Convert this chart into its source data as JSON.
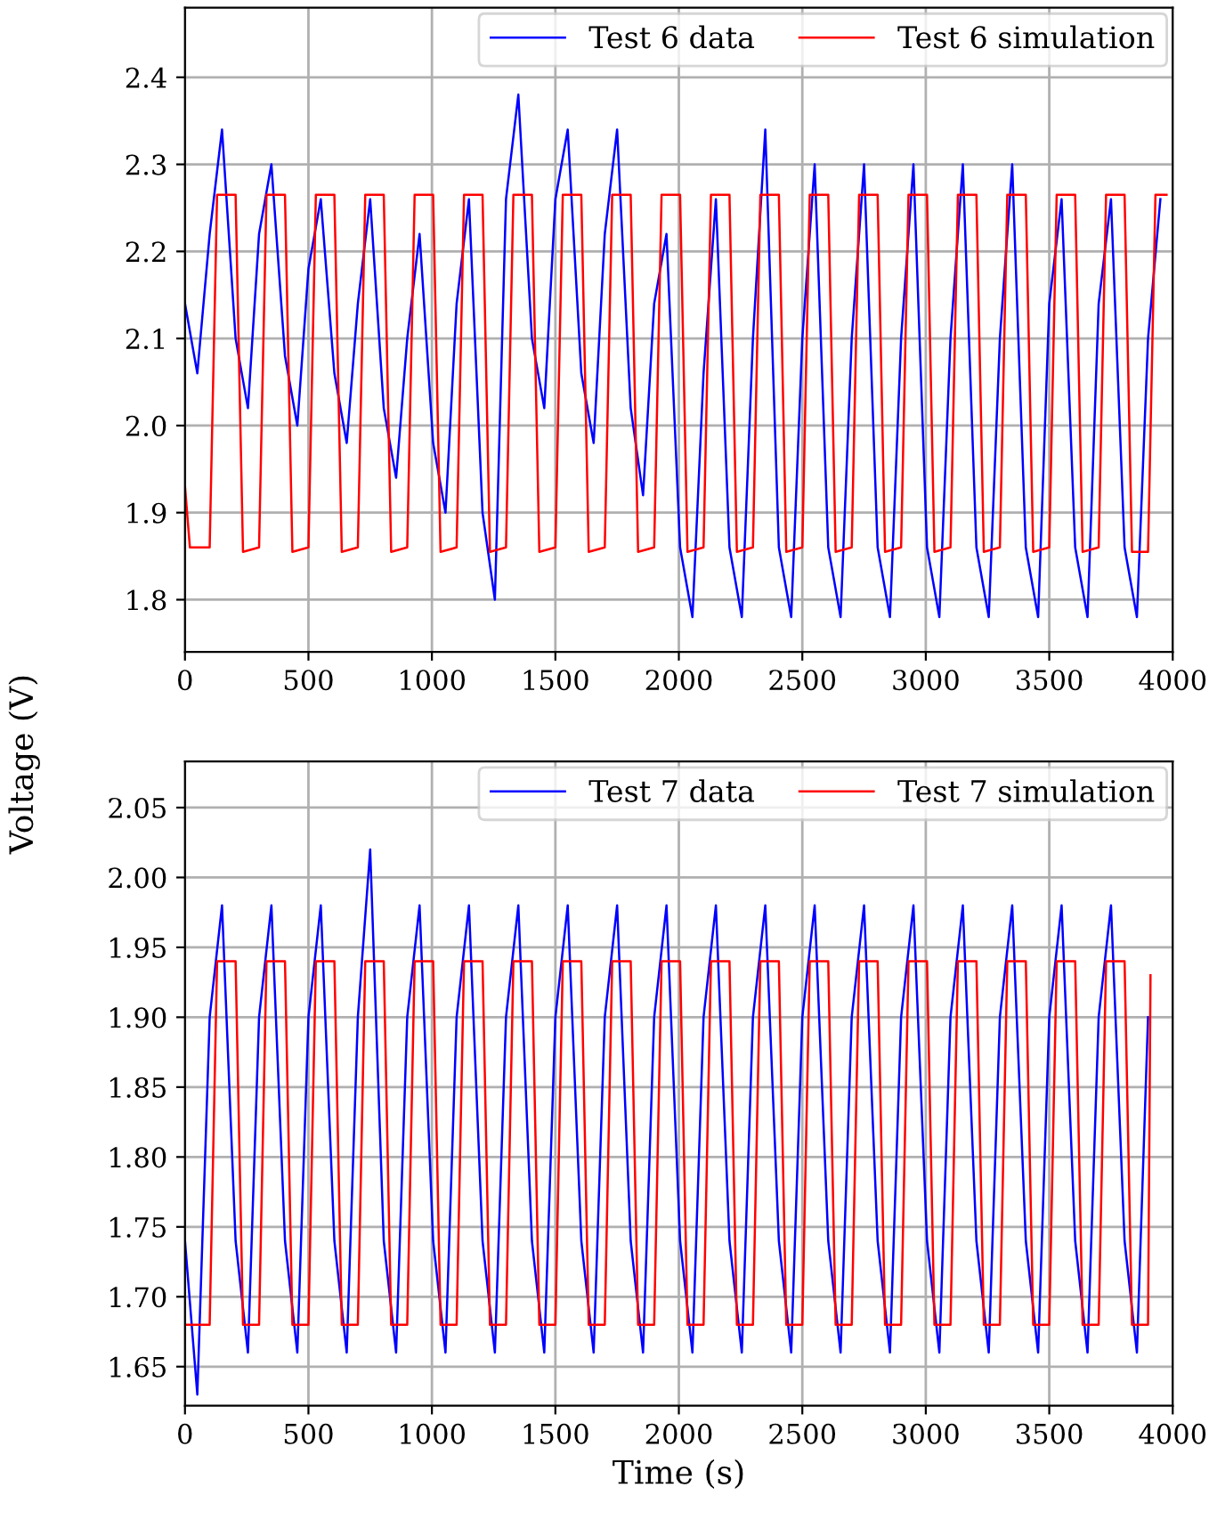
{
  "chart_data": [
    {
      "type": "line",
      "ylabel": "Voltage (V)",
      "xlim": [
        0,
        4000
      ],
      "ylim": [
        1.74,
        2.48
      ],
      "xticks": [
        0,
        500,
        1000,
        1500,
        2000,
        2500,
        3000,
        3500,
        4000
      ],
      "yticks": [
        {
          "value": 1.8,
          "label": "1.8"
        },
        {
          "value": 1.9,
          "label": "1.9"
        },
        {
          "value": 2.0,
          "label": "2.0"
        },
        {
          "value": 2.1,
          "label": "2.1"
        },
        {
          "value": 2.2,
          "label": "2.2"
        },
        {
          "value": 2.3,
          "label": "2.3"
        },
        {
          "value": 2.4,
          "label": "2.4"
        }
      ],
      "grid": true,
      "legend": "top right",
      "marker": "none",
      "line_style": "solid",
      "series": [
        {
          "name": "Test 6 data",
          "color": "#0000ff",
          "x": [
            0,
            50,
            100,
            150,
            205,
            255,
            300,
            350,
            405,
            455,
            500,
            550,
            605,
            655,
            700,
            750,
            805,
            855,
            900,
            950,
            1005,
            1055,
            1100,
            1150,
            1205,
            1255,
            1300,
            1350,
            1405,
            1455,
            1500,
            1550,
            1605,
            1655,
            1700,
            1750,
            1805,
            1855,
            1900,
            1950,
            2005,
            2055,
            2100,
            2150,
            2205,
            2255,
            2300,
            2350,
            2405,
            2455,
            2500,
            2550,
            2605,
            2655,
            2700,
            2750,
            2805,
            2855,
            2900,
            2950,
            3005,
            3055,
            3100,
            3150,
            3205,
            3255,
            3300,
            3350,
            3405,
            3455,
            3500,
            3550,
            3605,
            3655,
            3700,
            3750,
            3805,
            3855,
            3900,
            3950
          ],
          "values": [
            2.14,
            2.06,
            2.22,
            2.34,
            2.1,
            2.02,
            2.22,
            2.3,
            2.08,
            2.0,
            2.18,
            2.26,
            2.06,
            1.98,
            2.14,
            2.26,
            2.02,
            1.94,
            2.1,
            2.22,
            1.98,
            1.9,
            2.14,
            2.26,
            1.9,
            1.8,
            2.26,
            2.38,
            2.1,
            2.02,
            2.26,
            2.34,
            2.06,
            1.98,
            2.22,
            2.34,
            2.02,
            1.92,
            2.14,
            2.22,
            1.86,
            1.78,
            2.06,
            2.26,
            1.86,
            1.78,
            2.1,
            2.34,
            1.86,
            1.78,
            2.1,
            2.3,
            1.86,
            1.78,
            2.1,
            2.3,
            1.86,
            1.78,
            2.1,
            2.3,
            1.86,
            1.78,
            2.1,
            2.3,
            1.86,
            1.78,
            2.1,
            2.3,
            1.86,
            1.78,
            2.14,
            2.26,
            1.86,
            1.78,
            2.14,
            2.26,
            1.86,
            1.78,
            2.1,
            2.26
          ]
        },
        {
          "name": "Test 6 simulation",
          "color": "#ff0000",
          "x": [
            0,
            20,
            100,
            130,
            205,
            235,
            300,
            330,
            405,
            435,
            500,
            530,
            605,
            635,
            700,
            730,
            805,
            835,
            900,
            930,
            1005,
            1035,
            1100,
            1130,
            1205,
            1235,
            1300,
            1330,
            1405,
            1435,
            1500,
            1530,
            1605,
            1635,
            1700,
            1730,
            1805,
            1835,
            1900,
            1930,
            2005,
            2035,
            2100,
            2130,
            2205,
            2235,
            2300,
            2330,
            2405,
            2435,
            2500,
            2530,
            2605,
            2635,
            2700,
            2730,
            2805,
            2835,
            2900,
            2930,
            3005,
            3035,
            3100,
            3130,
            3205,
            3235,
            3300,
            3330,
            3405,
            3435,
            3500,
            3530,
            3605,
            3635,
            3700,
            3730,
            3805,
            3835,
            3900,
            3930,
            3975
          ],
          "values": [
            1.93,
            1.86,
            1.86,
            2.265,
            2.265,
            1.855,
            1.86,
            2.265,
            2.265,
            1.855,
            1.86,
            2.265,
            2.265,
            1.855,
            1.86,
            2.265,
            2.265,
            1.855,
            1.86,
            2.265,
            2.265,
            1.855,
            1.86,
            2.265,
            2.265,
            1.855,
            1.86,
            2.265,
            2.265,
            1.855,
            1.86,
            2.265,
            2.265,
            1.855,
            1.86,
            2.265,
            2.265,
            1.855,
            1.86,
            2.265,
            2.265,
            1.855,
            1.86,
            2.265,
            2.265,
            1.855,
            1.86,
            2.265,
            2.265,
            1.855,
            1.86,
            2.265,
            2.265,
            1.855,
            1.86,
            2.265,
            2.265,
            1.855,
            1.86,
            2.265,
            2.265,
            1.855,
            1.86,
            2.265,
            2.265,
            1.855,
            1.86,
            2.265,
            2.265,
            1.855,
            1.86,
            2.265,
            2.265,
            1.855,
            1.86,
            2.265,
            2.265,
            1.855,
            1.855,
            2.265,
            2.265
          ]
        }
      ]
    },
    {
      "type": "line",
      "xlabel": "Time (s)",
      "xlim": [
        0,
        4000
      ],
      "ylim": [
        1.622,
        2.083
      ],
      "xticks": [
        0,
        500,
        1000,
        1500,
        2000,
        2500,
        3000,
        3500,
        4000
      ],
      "yticks": [
        {
          "value": 1.65,
          "label": "1.65"
        },
        {
          "value": 1.7,
          "label": "1.70"
        },
        {
          "value": 1.75,
          "label": "1.75"
        },
        {
          "value": 1.8,
          "label": "1.80"
        },
        {
          "value": 1.85,
          "label": "1.85"
        },
        {
          "value": 1.9,
          "label": "1.90"
        },
        {
          "value": 1.95,
          "label": "1.95"
        },
        {
          "value": 2.0,
          "label": "2.00"
        },
        {
          "value": 2.05,
          "label": "2.05"
        }
      ],
      "grid": true,
      "legend": "top right",
      "marker": "none",
      "line_style": "solid",
      "series": [
        {
          "name": "Test 7 data",
          "color": "#0000ff",
          "x": [
            0,
            50,
            100,
            150,
            205,
            255,
            300,
            350,
            405,
            455,
            500,
            550,
            605,
            655,
            700,
            750,
            805,
            855,
            900,
            950,
            1005,
            1055,
            1100,
            1150,
            1205,
            1255,
            1300,
            1350,
            1405,
            1455,
            1500,
            1550,
            1605,
            1655,
            1700,
            1750,
            1805,
            1855,
            1900,
            1950,
            2005,
            2055,
            2100,
            2150,
            2205,
            2255,
            2300,
            2350,
            2405,
            2455,
            2500,
            2550,
            2605,
            2655,
            2700,
            2750,
            2805,
            2855,
            2900,
            2950,
            3005,
            3055,
            3100,
            3150,
            3205,
            3255,
            3300,
            3350,
            3405,
            3455,
            3500,
            3550,
            3605,
            3655,
            3700,
            3750,
            3805,
            3855,
            3900
          ],
          "values": [
            1.74,
            1.63,
            1.9,
            1.98,
            1.74,
            1.66,
            1.9,
            1.98,
            1.74,
            1.66,
            1.9,
            1.98,
            1.74,
            1.66,
            1.9,
            2.02,
            1.74,
            1.66,
            1.9,
            1.98,
            1.74,
            1.66,
            1.9,
            1.98,
            1.74,
            1.66,
            1.9,
            1.98,
            1.74,
            1.66,
            1.9,
            1.98,
            1.74,
            1.66,
            1.9,
            1.98,
            1.74,
            1.66,
            1.9,
            1.98,
            1.74,
            1.66,
            1.9,
            1.98,
            1.74,
            1.66,
            1.9,
            1.98,
            1.74,
            1.66,
            1.9,
            1.98,
            1.74,
            1.66,
            1.9,
            1.98,
            1.74,
            1.66,
            1.9,
            1.98,
            1.74,
            1.66,
            1.9,
            1.98,
            1.74,
            1.66,
            1.9,
            1.98,
            1.74,
            1.66,
            1.9,
            1.98,
            1.74,
            1.66,
            1.9,
            1.98,
            1.74,
            1.66,
            1.9
          ]
        },
        {
          "name": "Test 7 simulation",
          "color": "#ff0000",
          "x": [
            0,
            20,
            100,
            130,
            205,
            235,
            300,
            330,
            405,
            435,
            500,
            530,
            605,
            635,
            700,
            730,
            805,
            835,
            900,
            930,
            1005,
            1035,
            1100,
            1130,
            1205,
            1235,
            1300,
            1330,
            1405,
            1435,
            1500,
            1530,
            1605,
            1635,
            1700,
            1730,
            1805,
            1835,
            1900,
            1930,
            2005,
            2035,
            2100,
            2130,
            2205,
            2235,
            2300,
            2330,
            2405,
            2435,
            2500,
            2530,
            2605,
            2635,
            2700,
            2730,
            2805,
            2835,
            2900,
            2930,
            3005,
            3035,
            3100,
            3130,
            3205,
            3235,
            3300,
            3330,
            3405,
            3435,
            3500,
            3530,
            3605,
            3635,
            3700,
            3730,
            3805,
            3835,
            3900,
            3910
          ],
          "values": [
            1.68,
            1.68,
            1.68,
            1.94,
            1.94,
            1.68,
            1.68,
            1.94,
            1.94,
            1.68,
            1.68,
            1.94,
            1.94,
            1.68,
            1.68,
            1.94,
            1.94,
            1.68,
            1.68,
            1.94,
            1.94,
            1.68,
            1.68,
            1.94,
            1.94,
            1.68,
            1.68,
            1.94,
            1.94,
            1.68,
            1.68,
            1.94,
            1.94,
            1.68,
            1.68,
            1.94,
            1.94,
            1.68,
            1.68,
            1.94,
            1.94,
            1.68,
            1.68,
            1.94,
            1.94,
            1.68,
            1.68,
            1.94,
            1.94,
            1.68,
            1.68,
            1.94,
            1.94,
            1.68,
            1.68,
            1.94,
            1.94,
            1.68,
            1.68,
            1.94,
            1.94,
            1.68,
            1.68,
            1.94,
            1.94,
            1.68,
            1.68,
            1.94,
            1.94,
            1.68,
            1.68,
            1.94,
            1.94,
            1.68,
            1.68,
            1.94,
            1.94,
            1.68,
            1.68,
            1.93
          ]
        }
      ]
    }
  ]
}
